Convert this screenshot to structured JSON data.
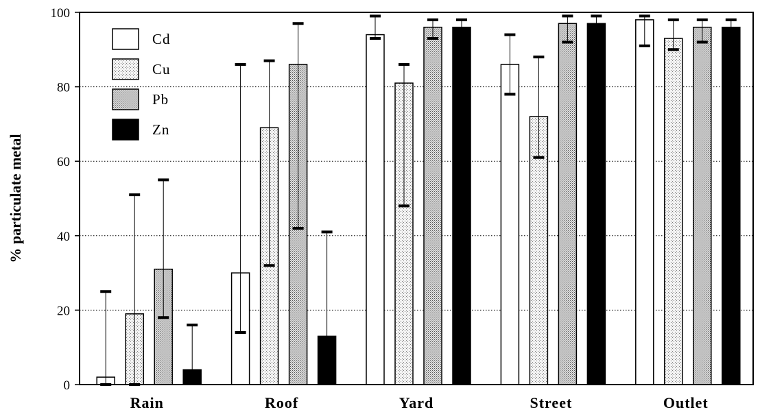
{
  "chart_data": {
    "type": "bar",
    "title": "",
    "xlabel": "",
    "ylabel": "% particulate metal",
    "ylim": [
      0,
      100
    ],
    "yticks": [
      0,
      20,
      40,
      60,
      80,
      100
    ],
    "grid": "horizontal dotted",
    "legend_position": "top-left",
    "categories": [
      "Rain",
      "Roof",
      "Yard",
      "Street",
      "Outlet"
    ],
    "series": [
      {
        "name": "Cd",
        "fill": "white",
        "values": [
          2,
          30,
          94,
          86,
          98
        ],
        "err_low": [
          0,
          14,
          93,
          78,
          91
        ],
        "err_high": [
          25,
          86,
          99,
          94,
          99
        ]
      },
      {
        "name": "Cu",
        "fill": "light-dots",
        "values": [
          19,
          69,
          81,
          72,
          93
        ],
        "err_low": [
          0,
          32,
          48,
          61,
          90
        ],
        "err_high": [
          51,
          87,
          86,
          88,
          98
        ]
      },
      {
        "name": "Pb",
        "fill": "dense-dots",
        "values": [
          31,
          86,
          96,
          97,
          96
        ],
        "err_low": [
          18,
          42,
          93,
          92,
          92
        ],
        "err_high": [
          55,
          97,
          98,
          99,
          98
        ]
      },
      {
        "name": "Zn",
        "fill": "black",
        "values": [
          4,
          13,
          96,
          97,
          96
        ],
        "err_low": [
          4,
          13,
          96,
          97,
          96
        ],
        "err_high": [
          16,
          41,
          98,
          99,
          98
        ]
      }
    ]
  }
}
